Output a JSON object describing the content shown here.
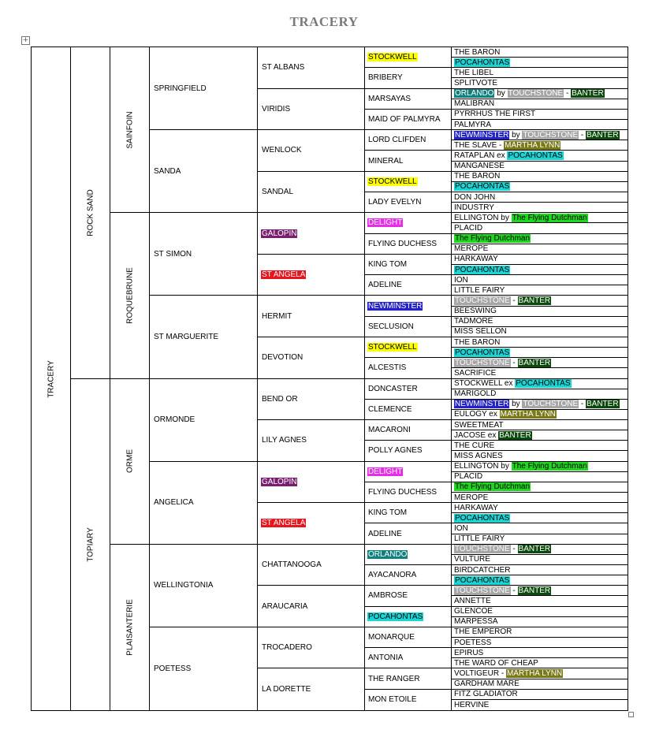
{
  "title": "TRACERY",
  "colors": {
    "Stockwell": {
      "bg": "#ffff00",
      "fg": "#000000"
    },
    "Pocahontas": {
      "bg": "#19d6d6",
      "fg": "#000000"
    },
    "Orlando": {
      "bg": "#138080",
      "fg": "#ffffff"
    },
    "Touchstone": {
      "bg": "#a6a6a6",
      "fg": "#ffffff"
    },
    "Banter": {
      "bg": "#0d4a0d",
      "fg": "#ffffff"
    },
    "Newminster": {
      "bg": "#2323c8",
      "fg": "#ffffff"
    },
    "Martha Lynn": {
      "bg": "#7a7a1a",
      "fg": "#ffffff"
    },
    "Delight": {
      "bg": "#e62ee6",
      "fg": "#ffffff"
    },
    "Galopin": {
      "bg": "#7a1f70",
      "fg": "#ffffff"
    },
    "St Angela": {
      "bg": "#e8141e",
      "fg": "#ffffff"
    },
    "Flying Dutchman": {
      "bg": "#21d621",
      "fg": "#000000"
    }
  },
  "gen0": {
    "name": "TRACERY"
  },
  "gen1": [
    {
      "name": "ROCK SAND"
    },
    {
      "name": "TOPIARY"
    }
  ],
  "gen2": [
    {
      "name": "SAINFOIN"
    },
    {
      "name": "ROQUEBRUNE"
    },
    {
      "name": "ORME"
    },
    {
      "name": "PLAISANTERIE"
    }
  ],
  "gen3": [
    {
      "name": "SPRINGFIELD"
    },
    {
      "name": "SANDA"
    },
    {
      "name": "ST SIMON"
    },
    {
      "name": "ST MARGUERITE"
    },
    {
      "name": "ORMONDE"
    },
    {
      "name": "ANGELICA"
    },
    {
      "name": "WELLINGTONIA"
    },
    {
      "name": "POETESS"
    }
  ],
  "gen4": [
    {
      "name": "ST ALBANS"
    },
    {
      "name": "VIRIDIS"
    },
    {
      "name": "WENLOCK"
    },
    {
      "name": "SANDAL"
    },
    {
      "name": "GALOPIN",
      "color": "Galopin"
    },
    {
      "name": "ST ANGELA",
      "color": "St Angela"
    },
    {
      "name": "HERMIT"
    },
    {
      "name": "DEVOTION"
    },
    {
      "name": "BEND OR"
    },
    {
      "name": "LILY AGNES"
    },
    {
      "name": "GALOPIN",
      "color": "Galopin"
    },
    {
      "name": "ST ANGELA",
      "color": "St Angela"
    },
    {
      "name": "CHATTANOOGA"
    },
    {
      "name": "ARAUCARIA"
    },
    {
      "name": "TROCADERO"
    },
    {
      "name": "LA DORETTE"
    }
  ],
  "gen5": [
    {
      "name": "STOCKWELL",
      "color": "Stockwell"
    },
    {
      "name": "BRIBERY"
    },
    {
      "name": "MARSAYAS"
    },
    {
      "name": "MAID OF PALMYRA"
    },
    {
      "name": "LORD CLIFDEN"
    },
    {
      "name": "MINERAL"
    },
    {
      "name": "STOCKWELL",
      "color": "Stockwell"
    },
    {
      "name": "LADY EVELYN"
    },
    {
      "name": "DELIGHT",
      "color": "Delight"
    },
    {
      "name": "FLYING DUCHESS"
    },
    {
      "name": "KING TOM"
    },
    {
      "name": "ADELINE"
    },
    {
      "name": "NEWMINSTER",
      "color": "Newminster"
    },
    {
      "name": "SECLUSION"
    },
    {
      "name": "STOCKWELL",
      "color": "Stockwell"
    },
    {
      "name": "ALCESTIS"
    },
    {
      "name": "DONCASTER"
    },
    {
      "name": "CLEMENCE"
    },
    {
      "name": "MACARONI"
    },
    {
      "name": "POLLY AGNES"
    },
    {
      "name": "DELIGHT",
      "color": "Delight"
    },
    {
      "name": "FLYING DUCHESS"
    },
    {
      "name": "KING TOM"
    },
    {
      "name": "ADELINE"
    },
    {
      "name": "ORLANDO",
      "color": "Orlando"
    },
    {
      "name": "AYACANORA"
    },
    {
      "name": "AMBROSE"
    },
    {
      "name": "POCAHONTAS",
      "color": "Pocahontas"
    },
    {
      "name": "MONARQUE"
    },
    {
      "name": "ANTONIA"
    },
    {
      "name": "THE RANGER"
    },
    {
      "name": "MON ETOILE"
    }
  ],
  "gen6": [
    [
      {
        "t": "THE BARON"
      }
    ],
    [
      {
        "t": "POCAHONTAS",
        "c": "Pocahontas"
      }
    ],
    [
      {
        "t": "THE LIBEL"
      }
    ],
    [
      {
        "t": "SPLITVOTE"
      }
    ],
    [
      {
        "t": "ORLANDO",
        "c": "Orlando"
      },
      {
        "t": " by "
      },
      {
        "t": "TOUCHSTONE",
        "c": "Touchstone"
      },
      {
        "t": " - "
      },
      {
        "t": "BANTER",
        "c": "Banter"
      }
    ],
    [
      {
        "t": "MALIBRAN"
      }
    ],
    [
      {
        "t": "PYRRHUS THE FIRST"
      }
    ],
    [
      {
        "t": "PALMYRA"
      }
    ],
    [
      {
        "t": "NEWMINSTER",
        "c": "Newminster"
      },
      {
        "t": " by "
      },
      {
        "t": "TOUCHSTONE",
        "c": "Touchstone"
      },
      {
        "t": " - "
      },
      {
        "t": "BANTER",
        "c": "Banter"
      }
    ],
    [
      {
        "t": "THE SLAVE - "
      },
      {
        "t": "MARTHA LYNN",
        "c": "Martha Lynn"
      }
    ],
    [
      {
        "t": "RATAPLAN ex "
      },
      {
        "t": "POCAHONTAS",
        "c": "Pocahontas"
      }
    ],
    [
      {
        "t": "MANGANESE"
      }
    ],
    [
      {
        "t": "THE BARON"
      }
    ],
    [
      {
        "t": "POCAHONTAS",
        "c": "Pocahontas"
      }
    ],
    [
      {
        "t": "DON JOHN"
      }
    ],
    [
      {
        "t": "INDUSTRY"
      }
    ],
    [
      {
        "t": "ELLINGTON by "
      },
      {
        "t": "The Flying Dutchman",
        "c": "Flying Dutchman"
      }
    ],
    [
      {
        "t": "PLACID"
      }
    ],
    [
      {
        "t": "The Flying Dutchman",
        "c": "Flying Dutchman"
      }
    ],
    [
      {
        "t": "MEROPE"
      }
    ],
    [
      {
        "t": "HARKAWAY"
      }
    ],
    [
      {
        "t": "POCAHONTAS",
        "c": "Pocahontas"
      }
    ],
    [
      {
        "t": "ION"
      }
    ],
    [
      {
        "t": "LITTLE FAIRY"
      }
    ],
    [
      {
        "t": "TOUCHSTONE",
        "c": "Touchstone"
      },
      {
        "t": " - "
      },
      {
        "t": "BANTER",
        "c": "Banter"
      }
    ],
    [
      {
        "t": "BEESWING"
      }
    ],
    [
      {
        "t": "TADMORE"
      }
    ],
    [
      {
        "t": "MISS SELLON"
      }
    ],
    [
      {
        "t": "THE BARON"
      }
    ],
    [
      {
        "t": "POCAHONTAS",
        "c": "Pocahontas"
      }
    ],
    [
      {
        "t": "TOUCHSTONE",
        "c": "Touchstone"
      },
      {
        "t": " - "
      },
      {
        "t": "BANTER",
        "c": "Banter"
      }
    ],
    [
      {
        "t": "SACRIFICE"
      }
    ],
    [
      {
        "t": "STOCKWELL ex "
      },
      {
        "t": "POCAHONTAS",
        "c": "Pocahontas"
      }
    ],
    [
      {
        "t": "MARIGOLD"
      }
    ],
    [
      {
        "t": "NEWMINSTER",
        "c": "Newminster"
      },
      {
        "t": " by "
      },
      {
        "t": "TOUCHSTONE",
        "c": "Touchstone"
      },
      {
        "t": " - "
      },
      {
        "t": "BANTER",
        "c": "Banter"
      }
    ],
    [
      {
        "t": "EULOGY ex "
      },
      {
        "t": "MARTHA LYNN",
        "c": "Martha Lynn"
      }
    ],
    [
      {
        "t": "SWEETMEAT"
      }
    ],
    [
      {
        "t": "JACOSE ex "
      },
      {
        "t": "BANTER",
        "c": "Banter"
      }
    ],
    [
      {
        "t": "THE CURE"
      }
    ],
    [
      {
        "t": "MISS AGNES"
      }
    ],
    [
      {
        "t": "ELLINGTON by "
      },
      {
        "t": "The Flying Dutchman",
        "c": "Flying Dutchman"
      }
    ],
    [
      {
        "t": "PLACID"
      }
    ],
    [
      {
        "t": "The Flying Dutchman",
        "c": "Flying Dutchman"
      }
    ],
    [
      {
        "t": "MEROPE"
      }
    ],
    [
      {
        "t": "HARKAWAY"
      }
    ],
    [
      {
        "t": "POCAHONTAS",
        "c": "Pocahontas"
      }
    ],
    [
      {
        "t": "ION"
      }
    ],
    [
      {
        "t": "LITTLE FAIRY"
      }
    ],
    [
      {
        "t": "TOUCHSTONE",
        "c": "Touchstone"
      },
      {
        "t": " - "
      },
      {
        "t": "BANTER",
        "c": "Banter"
      }
    ],
    [
      {
        "t": "VULTURE"
      }
    ],
    [
      {
        "t": "BIRDCATCHER"
      }
    ],
    [
      {
        "t": "POCAHONTAS",
        "c": "Pocahontas"
      }
    ],
    [
      {
        "t": "TOUCHSTONE",
        "c": "Touchstone"
      },
      {
        "t": " - "
      },
      {
        "t": "BANTER",
        "c": "Banter"
      }
    ],
    [
      {
        "t": "ANNETTE"
      }
    ],
    [
      {
        "t": "GLENCOE"
      }
    ],
    [
      {
        "t": "MARPESSA"
      }
    ],
    [
      {
        "t": "THE EMPEROR"
      }
    ],
    [
      {
        "t": "POETESS"
      }
    ],
    [
      {
        "t": "EPIRUS"
      }
    ],
    [
      {
        "t": "THE WARD OF CHEAP"
      }
    ],
    [
      {
        "t": "VOLTIGEUR - "
      },
      {
        "t": "MARTHA LYNN",
        "c": "Martha Lynn"
      }
    ],
    [
      {
        "t": "GARDHAM MARE"
      }
    ],
    [
      {
        "t": "FITZ GLADIATOR"
      }
    ],
    [
      {
        "t": "HERVINE"
      }
    ]
  ]
}
